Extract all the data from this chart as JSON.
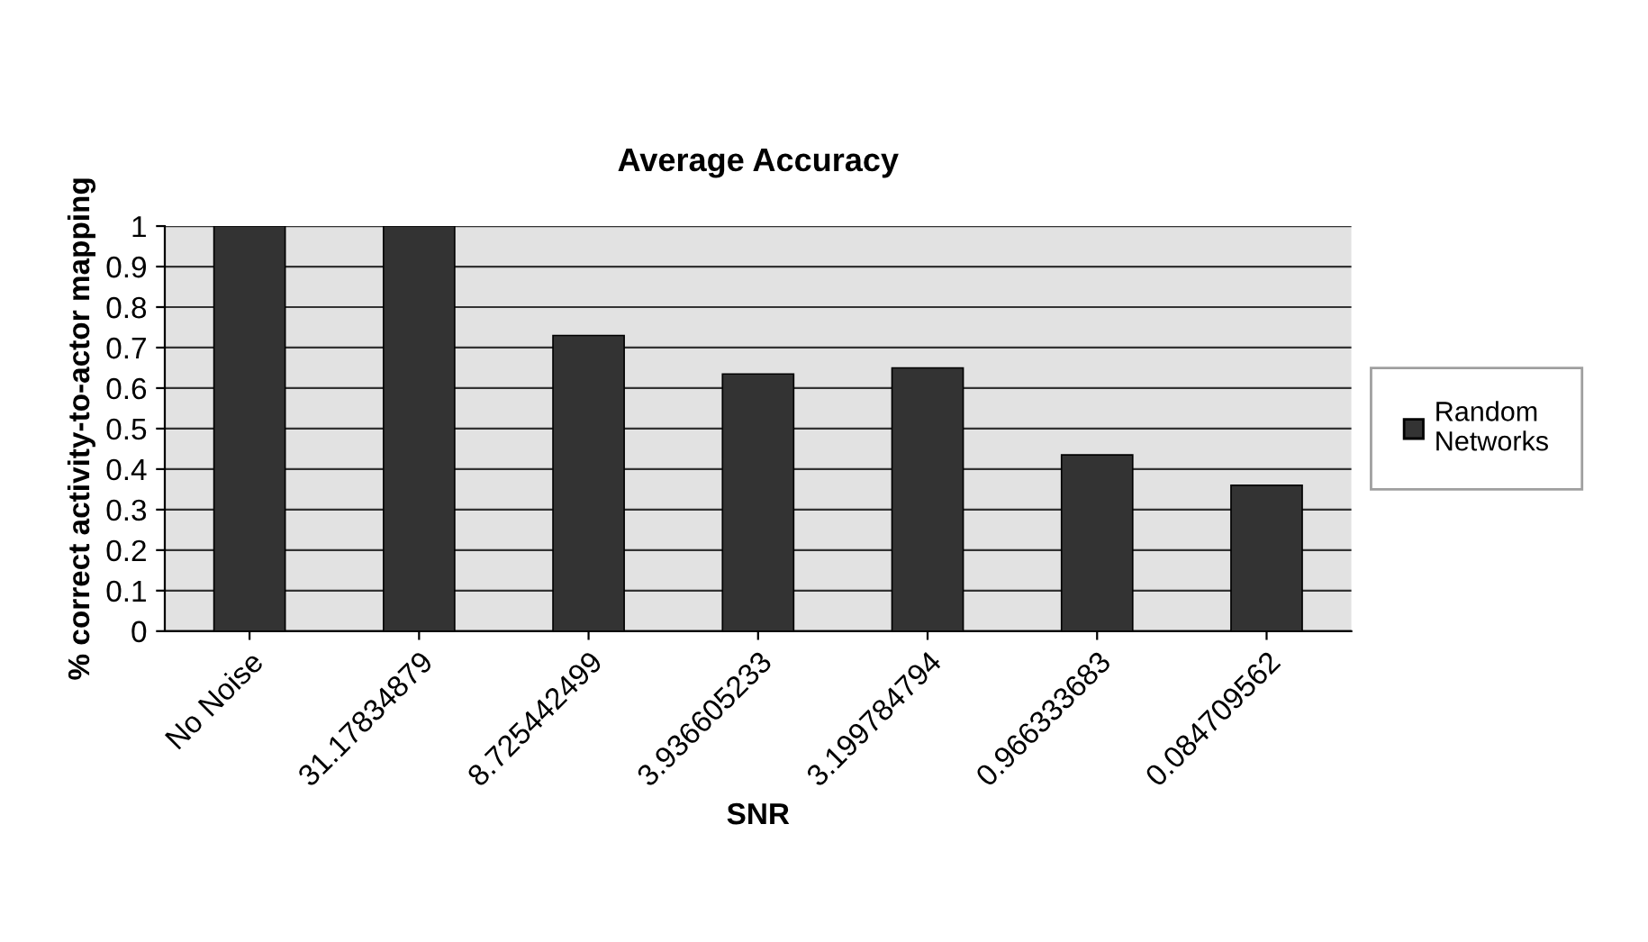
{
  "chart_data": {
    "type": "bar",
    "title": "Average Accuracy",
    "xlabel": "SNR",
    "ylabel": "% correct activity-to-actor mapping",
    "categories": [
      "No Noise",
      "31.17834879",
      "8.725442499",
      "3.936605233",
      "3.199784794",
      "0.966333683",
      "0.084709562"
    ],
    "series": [
      {
        "name": "Random\nNetworks",
        "color": "#333333",
        "values": [
          1,
          1,
          0.73,
          0.635,
          0.65,
          0.435,
          0.36
        ]
      }
    ],
    "ylim": [
      0,
      1
    ],
    "yticks": [
      0,
      0.1,
      0.2,
      0.3,
      0.4,
      0.5,
      0.6,
      0.7,
      0.8,
      0.9,
      1
    ],
    "grid": "y",
    "legend": "right"
  }
}
